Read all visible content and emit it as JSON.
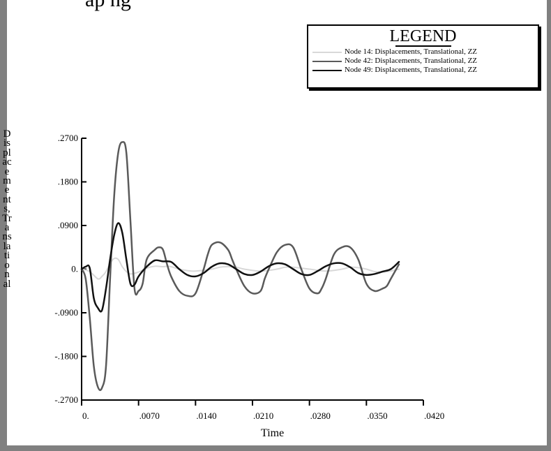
{
  "top_caption": "ap                                        ng",
  "legend": {
    "title": "LEGEND",
    "items": [
      {
        "label": "Node 14: Displacements, Translational, ZZ",
        "color": "#d8d8d8",
        "width": 2
      },
      {
        "label": "Node 42: Displacements, Translational, ZZ",
        "color": "#5a5a5a",
        "width": 2.5
      },
      {
        "label": "Node 49: Displacements, Translational, ZZ",
        "color": "#111111",
        "width": 2.5
      }
    ]
  },
  "chart_data": {
    "type": "line",
    "title": "",
    "xlabel": "Time",
    "ylabel": "Displacements, Translational",
    "xlim": [
      0,
      0.042
    ],
    "ylim": [
      -0.27,
      0.27
    ],
    "x_ticks": [
      0,
      0.007,
      0.014,
      0.021,
      0.028,
      0.035,
      0.042
    ],
    "x_tick_labels": [
      "0.",
      ".0070",
      ".0140",
      ".0210",
      ".0280",
      ".0350",
      ".0420"
    ],
    "y_ticks": [
      0.27,
      0.18,
      0.09,
      0,
      -0.09,
      -0.18,
      -0.27
    ],
    "y_tick_labels": [
      ".2700",
      ".1800",
      ".0900",
      "0.",
      "-.0900",
      "-.1800",
      "-.2700"
    ],
    "grid": false,
    "legend_position": "top-right",
    "series": [
      {
        "name": "Node 14: Displacements, Translational, ZZ",
        "x": [
          0,
          0.001,
          0.002,
          0.0025,
          0.003,
          0.0035,
          0.004,
          0.0045,
          0.005,
          0.0055,
          0.006,
          0.007,
          0.008,
          0.009,
          0.01,
          0.0105,
          0.011,
          0.012,
          0.013,
          0.014,
          0.016,
          0.017,
          0.018,
          0.019,
          0.02,
          0.022,
          0.024,
          0.025,
          0.026,
          0.028,
          0.03,
          0.032,
          0.033,
          0.034,
          0.035,
          0.036,
          0.037,
          0.038,
          0.039
        ],
        "values": [
          0,
          -0.005,
          -0.02,
          -0.015,
          -0.005,
          0.012,
          0.022,
          0.02,
          0.005,
          -0.005,
          -0.01,
          -0.006,
          0.002,
          0.006,
          0.005,
          0.006,
          0.005,
          0.0,
          -0.003,
          -0.004,
          0.0,
          0.004,
          0.005,
          0.004,
          0.0,
          -0.004,
          0.0,
          0.004,
          0.004,
          0.0,
          -0.004,
          0.0,
          0.004,
          0.003,
          0.0,
          -0.005,
          -0.006,
          -0.004,
          0.0
        ]
      },
      {
        "name": "Node 42: Displacements, Translational, ZZ",
        "x": [
          0,
          0.0005,
          0.001,
          0.0015,
          0.002,
          0.0025,
          0.003,
          0.0035,
          0.004,
          0.0045,
          0.005,
          0.0055,
          0.006,
          0.0065,
          0.007,
          0.0075,
          0.008,
          0.009,
          0.0095,
          0.01,
          0.0105,
          0.011,
          0.012,
          0.013,
          0.014,
          0.015,
          0.0155,
          0.016,
          0.017,
          0.018,
          0.0185,
          0.019,
          0.02,
          0.021,
          0.022,
          0.0225,
          0.023,
          0.024,
          0.025,
          0.026,
          0.027,
          0.028,
          0.029,
          0.0295,
          0.03,
          0.031,
          0.032,
          0.033,
          0.034,
          0.035,
          0.036,
          0.037,
          0.0375,
          0.038,
          0.039
        ],
        "values": [
          0,
          -0.02,
          -0.1,
          -0.2,
          -0.243,
          -0.245,
          -0.2,
          -0.02,
          0.15,
          0.24,
          0.262,
          0.24,
          0.1,
          -0.04,
          -0.045,
          -0.03,
          0.02,
          0.04,
          0.045,
          0.04,
          0.01,
          -0.015,
          -0.045,
          -0.055,
          -0.05,
          0.0,
          0.03,
          0.05,
          0.055,
          0.04,
          0.02,
          0.0,
          -0.035,
          -0.05,
          -0.045,
          -0.02,
          0.0,
          0.035,
          0.05,
          0.045,
          0.0,
          -0.04,
          -0.05,
          -0.04,
          -0.02,
          0.03,
          0.045,
          0.045,
          0.02,
          -0.03,
          -0.045,
          -0.04,
          -0.035,
          -0.02,
          0.01
        ]
      },
      {
        "name": "Node 49: Displacements, Translational, ZZ",
        "x": [
          0,
          0.0005,
          0.001,
          0.0015,
          0.002,
          0.0025,
          0.003,
          0.0035,
          0.004,
          0.0045,
          0.005,
          0.0055,
          0.006,
          0.0065,
          0.007,
          0.008,
          0.009,
          0.01,
          0.011,
          0.012,
          0.013,
          0.014,
          0.015,
          0.016,
          0.017,
          0.018,
          0.019,
          0.02,
          0.021,
          0.022,
          0.023,
          0.024,
          0.025,
          0.026,
          0.027,
          0.028,
          0.029,
          0.03,
          0.031,
          0.032,
          0.033,
          0.034,
          0.035,
          0.036,
          0.037,
          0.038,
          0.039
        ],
        "values": [
          0,
          0.005,
          0.002,
          -0.06,
          -0.08,
          -0.085,
          -0.04,
          0.02,
          0.07,
          0.095,
          0.075,
          0.02,
          -0.03,
          -0.032,
          -0.015,
          0.005,
          0.018,
          0.016,
          0.015,
          0.0,
          -0.012,
          -0.015,
          -0.008,
          0.005,
          0.012,
          0.01,
          0.0,
          -0.01,
          -0.012,
          -0.005,
          0.006,
          0.012,
          0.01,
          0.0,
          -0.01,
          -0.012,
          -0.004,
          0.006,
          0.012,
          0.012,
          0.004,
          -0.008,
          -0.012,
          -0.01,
          -0.005,
          0.0,
          0.015
        ]
      }
    ]
  }
}
